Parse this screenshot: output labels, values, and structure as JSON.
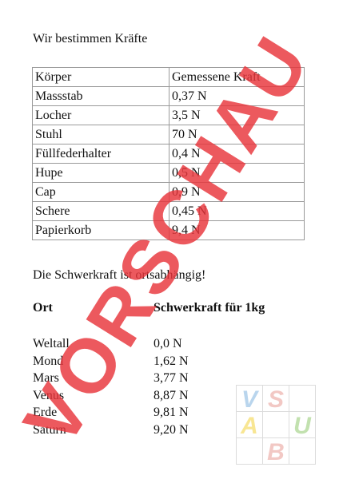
{
  "heading": "Wir bestimmen Kräfte",
  "force_table": {
    "headers": [
      "Körper",
      "Gemessene Kraft"
    ],
    "rows": [
      [
        "Massstab",
        "0,37 N"
      ],
      [
        "Locher",
        "3,5 N"
      ],
      [
        "Stuhl",
        "70 N"
      ],
      [
        "Füllfederhalter",
        "0,4 N"
      ],
      [
        "Hupe",
        "0,5 N"
      ],
      [
        "Cap",
        "0,9 N"
      ],
      [
        "Schere",
        "0,45 N"
      ],
      [
        "Papierkorb",
        "9,4 N"
      ]
    ]
  },
  "note": "Die Schwerkraft ist ortsabhängig!",
  "gravity": {
    "header_place": "Ort",
    "header_force": "Schwerkraft für 1kg",
    "rows": [
      [
        "Weltall",
        "0,0 N"
      ],
      [
        "Mond",
        "1,62 N"
      ],
      [
        "Mars",
        "3,77 N"
      ],
      [
        "Venus",
        "8,87 N"
      ],
      [
        "Erde",
        "9,81 N"
      ],
      [
        "Saturn",
        "9,20 N"
      ]
    ]
  },
  "watermark": {
    "text": "VORSCHAU",
    "color": "#e8353b"
  },
  "logo": {
    "letters": [
      "V",
      "S",
      "A",
      "U",
      "B"
    ],
    "colors": [
      "#7fb3de",
      "#e89a93",
      "#f3d23a",
      "#8fc86d",
      "#e89a93"
    ]
  }
}
